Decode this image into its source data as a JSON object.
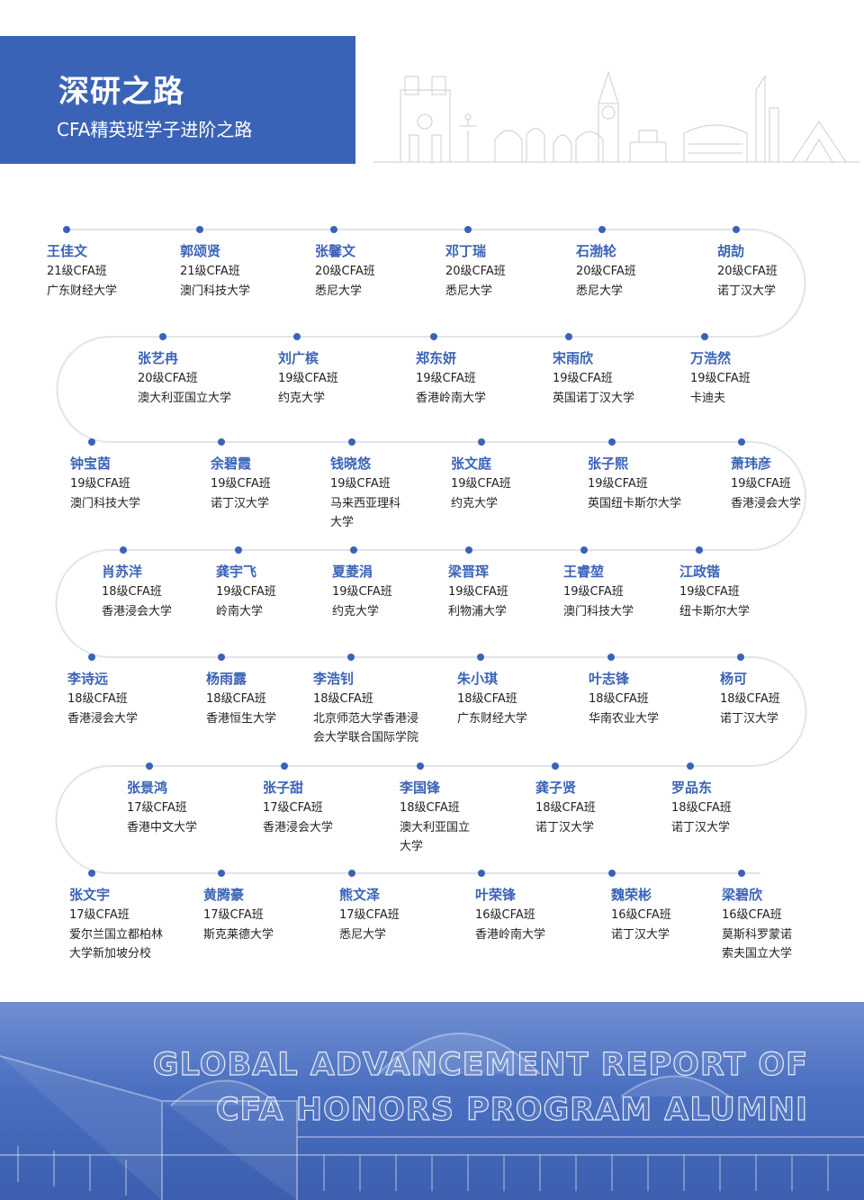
{
  "header": {
    "title": "深研之路",
    "subtitle": "CFA精英班学子进阶之路",
    "accent": "#3a63b8"
  },
  "rows": [
    [
      {
        "name": "王佳文",
        "class": "21级CFA班",
        "school": [
          "广东财经大学"
        ]
      },
      {
        "name": "郭颂贤",
        "class": "21级CFA班",
        "school": [
          "澳门科技大学"
        ]
      },
      {
        "name": "张馨文",
        "class": "20级CFA班",
        "school": [
          "悉尼大学"
        ]
      },
      {
        "name": "邓丁瑞",
        "class": "20级CFA班",
        "school": [
          "悉尼大学"
        ]
      },
      {
        "name": "石渤轮",
        "class": "20级CFA班",
        "school": [
          "悉尼大学"
        ]
      },
      {
        "name": "胡劼",
        "class": "20级CFA班",
        "school": [
          "诺丁汉大学"
        ]
      }
    ],
    [
      {
        "name": "张艺冉",
        "class": "20级CFA班",
        "school": [
          "澳大利亚国立大学"
        ]
      },
      {
        "name": "刘广槟",
        "class": "19级CFA班",
        "school": [
          "约克大学"
        ]
      },
      {
        "name": "郑东妍",
        "class": "19级CFA班",
        "school": [
          "香港岭南大学"
        ]
      },
      {
        "name": "宋雨欣",
        "class": "19级CFA班",
        "school": [
          "英国诺丁汉大学"
        ]
      },
      {
        "name": "万浩然",
        "class": "19级CFA班",
        "school": [
          "卡迪夫"
        ]
      }
    ],
    [
      {
        "name": "钟宝茵",
        "class": "19级CFA班",
        "school": [
          "澳门科技大学"
        ]
      },
      {
        "name": "余碧霞",
        "class": "19级CFA班",
        "school": [
          "诺丁汉大学"
        ]
      },
      {
        "name": "钱晓悠",
        "class": "19级CFA班",
        "school": [
          "马来西亚理科",
          "大学"
        ]
      },
      {
        "name": "张文庭",
        "class": "19级CFA班",
        "school": [
          "约克大学"
        ]
      },
      {
        "name": "张子熙",
        "class": "19级CFA班",
        "school": [
          "英国纽卡斯尔大学"
        ]
      },
      {
        "name": "萧玮彦",
        "class": "19级CFA班",
        "school": [
          "香港浸会大学"
        ]
      }
    ],
    [
      {
        "name": "肖苏洋",
        "class": "18级CFA班",
        "school": [
          "香港浸会大学"
        ]
      },
      {
        "name": "龚宇飞",
        "class": "19级CFA班",
        "school": [
          "岭南大学"
        ]
      },
      {
        "name": "夏菱涓",
        "class": "19级CFA班",
        "school": [
          "约克大学"
        ]
      },
      {
        "name": "梁晋珲",
        "class": "19级CFA班",
        "school": [
          "利物浦大学"
        ]
      },
      {
        "name": "王睿堃",
        "class": "19级CFA班",
        "school": [
          "澳门科技大学"
        ]
      },
      {
        "name": "江政锴",
        "class": "19级CFA班",
        "school": [
          "纽卡斯尔大学"
        ]
      }
    ],
    [
      {
        "name": "李诗远",
        "class": "18级CFA班",
        "school": [
          "香港浸会大学"
        ]
      },
      {
        "name": "杨雨露",
        "class": "18级CFA班",
        "school": [
          "香港恒生大学"
        ]
      },
      {
        "name": "李浩钊",
        "class": "18级CFA班",
        "school": [
          "北京师范大学香港浸",
          "会大学联合国际学院"
        ]
      },
      {
        "name": "朱小琪",
        "class": "18级CFA班",
        "school": [
          "广东财经大学"
        ]
      },
      {
        "name": "叶志锋",
        "class": "18级CFA班",
        "school": [
          "华南农业大学"
        ]
      },
      {
        "name": "杨可",
        "class": "18级CFA班",
        "school": [
          "诺丁汉大学"
        ]
      }
    ],
    [
      {
        "name": "张景鸿",
        "class": "17级CFA班",
        "school": [
          "香港中文大学"
        ]
      },
      {
        "name": "张子甜",
        "class": "17级CFA班",
        "school": [
          "香港浸会大学"
        ]
      },
      {
        "name": "李国锋",
        "class": "18级CFA班",
        "school": [
          "澳大利亚国立",
          "大学"
        ]
      },
      {
        "name": "龚子贤",
        "class": "18级CFA班",
        "school": [
          "诺丁汉大学"
        ]
      },
      {
        "name": "罗品东",
        "class": "18级CFA班",
        "school": [
          "诺丁汉大学"
        ]
      }
    ],
    [
      {
        "name": "张文宇",
        "class": "17级CFA班",
        "school": [
          "爱尔兰国立都柏林",
          "大学新加坡分校"
        ]
      },
      {
        "name": "黄腾豪",
        "class": "17级CFA班",
        "school": [
          "斯克莱德大学"
        ]
      },
      {
        "name": "熊文泽",
        "class": "17级CFA班",
        "school": [
          "悉尼大学"
        ]
      },
      {
        "name": "叶荣锋",
        "class": "16级CFA班",
        "school": [
          "香港岭南大学"
        ]
      },
      {
        "name": "魏荣彬",
        "class": "16级CFA班",
        "school": [
          "诺丁汉大学"
        ]
      },
      {
        "name": "梁碧欣",
        "class": "16级CFA班",
        "school": [
          "莫斯科罗蒙诺",
          "索夫国立大学"
        ]
      }
    ]
  ],
  "footer": {
    "line1": "GLOBAL ADVANCEMENT REPORT OF",
    "line2": "CFA HONORS PROGRAM ALUMNI"
  }
}
